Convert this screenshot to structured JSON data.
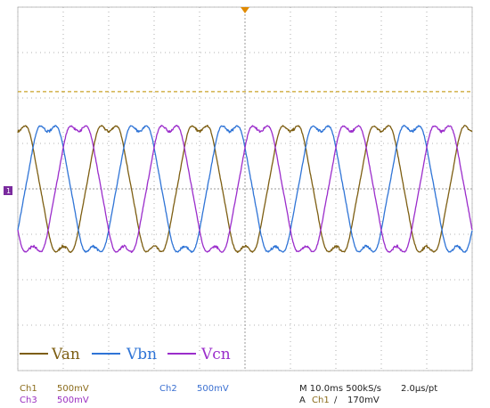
{
  "chart_data": {
    "type": "line",
    "title": "",
    "xlabel": "",
    "ylabel": "",
    "grid": true,
    "xlim": [
      0,
      100
    ],
    "ylim": [
      -4,
      4
    ],
    "timebase_ms_per_div": 10,
    "volts_per_div_mV": 500,
    "series": [
      {
        "name": "Van",
        "color": "#7d5e12",
        "amplitude": 1.6,
        "period_ms": 20,
        "phase_deg": 90
      },
      {
        "name": "Vbn",
        "color": "#2f74d6",
        "amplitude": 1.6,
        "period_ms": 20,
        "phase_deg": -30
      },
      {
        "name": "Vcn",
        "color": "#9b2dcb",
        "amplitude": 1.6,
        "period_ms": 20,
        "phase_deg": 210
      }
    ],
    "trigger_level_mV": 170,
    "legend_position": "bottom-left"
  },
  "legend": {
    "van": "Van",
    "vbn": "Vbn",
    "vcn": "Vcn"
  },
  "status": {
    "ch1_label": "Ch1",
    "ch1_scale": "500mV",
    "ch2_label": "Ch2",
    "ch2_scale": "500mV",
    "ch3_label": "Ch3",
    "ch3_scale": "500mV",
    "timebase": "M 10.0ms 500kS/s",
    "sample": "2.0µs/pt",
    "trigger_prefix": "A",
    "trigger_source": "Ch1",
    "trigger_slope": "∕",
    "trigger_level": "170mV"
  },
  "colors": {
    "grid": "#9a9a9a",
    "trigger_marker": "#e08a00",
    "ground_marker": "#7a2b9e",
    "trigger_line": "#c9a227"
  }
}
